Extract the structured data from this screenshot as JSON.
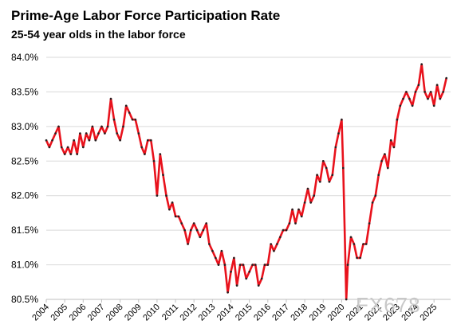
{
  "chart_data": {
    "type": "line",
    "title": "Prime-Age Labor Force Participation Rate",
    "subtitle": "25-54 year olds in the labor force",
    "xlabel": "",
    "ylabel": "",
    "ylim": [
      80.5,
      84.0
    ],
    "xlim": [
      2004,
      2025.9
    ],
    "y_ticks": [
      80.5,
      81.0,
      81.5,
      82.0,
      82.5,
      83.0,
      83.5,
      84.0
    ],
    "y_tick_labels": [
      "80.5%",
      "81.0%",
      "81.5%",
      "82.0%",
      "82.5%",
      "83.0%",
      "83.5%",
      "84.0%"
    ],
    "x_ticks": [
      2004,
      2005,
      2006,
      2007,
      2008,
      2009,
      2010,
      2011,
      2012,
      2013,
      2014,
      2015,
      2016,
      2017,
      2018,
      2019,
      2020,
      2021,
      2022,
      2023,
      2024,
      2025
    ],
    "x_tick_labels": [
      "2004",
      "2005",
      "2006",
      "2007",
      "2008",
      "2009",
      "2010",
      "2011",
      "2012",
      "2013",
      "2014",
      "2015",
      "2016",
      "2017",
      "2018",
      "2019",
      "2020",
      "2021",
      "2022",
      "2023",
      "2024",
      "2025"
    ],
    "grid": "horizontal",
    "legend": "none",
    "series": [
      {
        "color": "#e8121c",
        "marker_color": "#222222",
        "points": [
          [
            2004.0,
            82.8
          ],
          [
            2004.17,
            82.7
          ],
          [
            2004.33,
            82.8
          ],
          [
            2004.5,
            82.9
          ],
          [
            2004.67,
            83.0
          ],
          [
            2004.83,
            82.7
          ],
          [
            2005.0,
            82.6
          ],
          [
            2005.17,
            82.7
          ],
          [
            2005.33,
            82.6
          ],
          [
            2005.5,
            82.8
          ],
          [
            2005.67,
            82.6
          ],
          [
            2005.83,
            82.9
          ],
          [
            2006.0,
            82.7
          ],
          [
            2006.17,
            82.9
          ],
          [
            2006.33,
            82.8
          ],
          [
            2006.5,
            83.0
          ],
          [
            2006.67,
            82.8
          ],
          [
            2006.83,
            82.9
          ],
          [
            2007.0,
            83.0
          ],
          [
            2007.17,
            82.9
          ],
          [
            2007.33,
            83.0
          ],
          [
            2007.5,
            83.4
          ],
          [
            2007.67,
            83.1
          ],
          [
            2007.83,
            82.9
          ],
          [
            2008.0,
            82.8
          ],
          [
            2008.17,
            83.0
          ],
          [
            2008.33,
            83.3
          ],
          [
            2008.5,
            83.2
          ],
          [
            2008.67,
            83.1
          ],
          [
            2008.83,
            83.1
          ],
          [
            2009.0,
            82.9
          ],
          [
            2009.17,
            82.7
          ],
          [
            2009.33,
            82.6
          ],
          [
            2009.5,
            82.8
          ],
          [
            2009.67,
            82.8
          ],
          [
            2009.83,
            82.5
          ],
          [
            2010.0,
            82.0
          ],
          [
            2010.17,
            82.6
          ],
          [
            2010.33,
            82.3
          ],
          [
            2010.5,
            82.0
          ],
          [
            2010.67,
            81.8
          ],
          [
            2010.83,
            81.9
          ],
          [
            2011.0,
            81.7
          ],
          [
            2011.17,
            81.7
          ],
          [
            2011.33,
            81.6
          ],
          [
            2011.5,
            81.5
          ],
          [
            2011.67,
            81.3
          ],
          [
            2011.83,
            81.5
          ],
          [
            2012.0,
            81.6
          ],
          [
            2012.17,
            81.5
          ],
          [
            2012.33,
            81.4
          ],
          [
            2012.5,
            81.5
          ],
          [
            2012.67,
            81.6
          ],
          [
            2012.83,
            81.3
          ],
          [
            2013.0,
            81.2
          ],
          [
            2013.17,
            81.1
          ],
          [
            2013.33,
            81.0
          ],
          [
            2013.5,
            81.2
          ],
          [
            2013.67,
            81.0
          ],
          [
            2013.83,
            80.6
          ],
          [
            2014.0,
            80.9
          ],
          [
            2014.17,
            81.1
          ],
          [
            2014.33,
            80.7
          ],
          [
            2014.5,
            81.0
          ],
          [
            2014.67,
            81.0
          ],
          [
            2014.83,
            80.8
          ],
          [
            2015.0,
            80.9
          ],
          [
            2015.17,
            81.0
          ],
          [
            2015.33,
            81.0
          ],
          [
            2015.5,
            80.7
          ],
          [
            2015.67,
            80.8
          ],
          [
            2015.83,
            81.0
          ],
          [
            2016.0,
            81.0
          ],
          [
            2016.17,
            81.3
          ],
          [
            2016.33,
            81.2
          ],
          [
            2016.5,
            81.3
          ],
          [
            2016.67,
            81.4
          ],
          [
            2016.83,
            81.5
          ],
          [
            2017.0,
            81.5
          ],
          [
            2017.17,
            81.6
          ],
          [
            2017.33,
            81.8
          ],
          [
            2017.5,
            81.6
          ],
          [
            2017.67,
            81.8
          ],
          [
            2017.83,
            81.7
          ],
          [
            2018.0,
            81.9
          ],
          [
            2018.17,
            82.1
          ],
          [
            2018.33,
            81.9
          ],
          [
            2018.5,
            82.0
          ],
          [
            2018.67,
            82.3
          ],
          [
            2018.83,
            82.2
          ],
          [
            2019.0,
            82.5
          ],
          [
            2019.17,
            82.4
          ],
          [
            2019.33,
            82.2
          ],
          [
            2019.5,
            82.3
          ],
          [
            2019.67,
            82.7
          ],
          [
            2019.83,
            82.9
          ],
          [
            2020.0,
            83.1
          ],
          [
            2020.08,
            82.4
          ],
          [
            2020.25,
            80.5
          ],
          [
            2020.33,
            81.0
          ],
          [
            2020.5,
            81.4
          ],
          [
            2020.67,
            81.3
          ],
          [
            2020.83,
            81.1
          ],
          [
            2021.0,
            81.1
          ],
          [
            2021.17,
            81.3
          ],
          [
            2021.33,
            81.3
          ],
          [
            2021.5,
            81.6
          ],
          [
            2021.67,
            81.9
          ],
          [
            2021.83,
            82.0
          ],
          [
            2022.0,
            82.3
          ],
          [
            2022.17,
            82.5
          ],
          [
            2022.33,
            82.6
          ],
          [
            2022.5,
            82.4
          ],
          [
            2022.67,
            82.8
          ],
          [
            2022.83,
            82.7
          ],
          [
            2023.0,
            83.1
          ],
          [
            2023.17,
            83.3
          ],
          [
            2023.33,
            83.4
          ],
          [
            2023.5,
            83.5
          ],
          [
            2023.67,
            83.4
          ],
          [
            2023.83,
            83.3
          ],
          [
            2024.0,
            83.5
          ],
          [
            2024.17,
            83.6
          ],
          [
            2024.33,
            83.9
          ],
          [
            2024.5,
            83.5
          ],
          [
            2024.67,
            83.4
          ],
          [
            2024.83,
            83.5
          ],
          [
            2025.0,
            83.3
          ],
          [
            2025.17,
            83.6
          ],
          [
            2025.33,
            83.4
          ],
          [
            2025.5,
            83.5
          ],
          [
            2025.67,
            83.7
          ]
        ]
      }
    ]
  },
  "watermark": "FX678"
}
